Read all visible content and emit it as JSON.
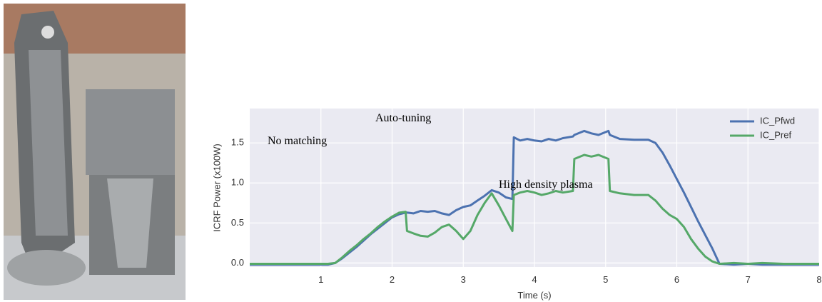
{
  "chart_data": {
    "type": "line",
    "xlabel": "Time (s)",
    "ylabel": "ICRF Power (x100W)",
    "annotations": [
      "No matching",
      "Auto-tuning",
      "High density plasma"
    ],
    "x": [
      0,
      0.5,
      1.0,
      1.1,
      1.2,
      1.3,
      1.4,
      1.5,
      1.6,
      1.7,
      1.8,
      1.9,
      2.0,
      2.1,
      2.19,
      2.21,
      2.3,
      2.4,
      2.5,
      2.6,
      2.7,
      2.8,
      2.9,
      3.0,
      3.1,
      3.2,
      3.3,
      3.4,
      3.5,
      3.6,
      3.69,
      3.71,
      3.8,
      3.9,
      4.0,
      4.1,
      4.2,
      4.3,
      4.4,
      4.54,
      4.56,
      4.7,
      4.8,
      4.9,
      5.04,
      5.06,
      5.2,
      5.4,
      5.6,
      5.7,
      5.8,
      5.9,
      6.0,
      6.1,
      6.2,
      6.3,
      6.4,
      6.5,
      6.6,
      6.8,
      7.0,
      7.2,
      7.5,
      8.0
    ],
    "series": [
      {
        "name": "IC_Pfwd",
        "color": "#4c72b0",
        "values": [
          -0.02,
          -0.02,
          -0.02,
          -0.02,
          0.0,
          0.06,
          0.13,
          0.2,
          0.28,
          0.36,
          0.43,
          0.5,
          0.57,
          0.61,
          0.63,
          0.63,
          0.62,
          0.65,
          0.64,
          0.65,
          0.62,
          0.6,
          0.66,
          0.7,
          0.72,
          0.78,
          0.84,
          0.91,
          0.88,
          0.82,
          0.8,
          1.57,
          1.53,
          1.55,
          1.53,
          1.52,
          1.55,
          1.53,
          1.56,
          1.58,
          1.6,
          1.65,
          1.62,
          1.6,
          1.65,
          1.6,
          1.55,
          1.54,
          1.54,
          1.5,
          1.38,
          1.22,
          1.05,
          0.88,
          0.7,
          0.52,
          0.35,
          0.18,
          -0.01,
          -0.02,
          -0.01,
          -0.02,
          -0.02,
          -0.02
        ]
      },
      {
        "name": "IC_Pref",
        "color": "#55a868",
        "values": [
          -0.01,
          -0.01,
          -0.01,
          -0.01,
          0.0,
          0.07,
          0.15,
          0.22,
          0.3,
          0.37,
          0.45,
          0.52,
          0.58,
          0.63,
          0.64,
          0.4,
          0.37,
          0.34,
          0.33,
          0.38,
          0.45,
          0.48,
          0.4,
          0.3,
          0.4,
          0.6,
          0.75,
          0.87,
          0.72,
          0.55,
          0.4,
          0.85,
          0.88,
          0.9,
          0.88,
          0.85,
          0.87,
          0.9,
          0.88,
          0.9,
          1.3,
          1.35,
          1.33,
          1.35,
          1.3,
          0.9,
          0.87,
          0.85,
          0.85,
          0.78,
          0.68,
          0.6,
          0.55,
          0.45,
          0.3,
          0.18,
          0.08,
          0.02,
          -0.01,
          0.0,
          -0.01,
          0.0,
          -0.01,
          -0.01
        ]
      }
    ],
    "xlim": [
      0,
      8
    ],
    "xticks": [
      1,
      2,
      3,
      4,
      5,
      6,
      7,
      8
    ],
    "ylim": [
      -0.05,
      1.93
    ],
    "yticks": [
      {
        "value": 0,
        "label": "0.0"
      },
      0.5,
      {
        "value": 1,
        "label": "1.0"
      },
      1.5
    ],
    "grid": true,
    "legend": "upper right"
  }
}
